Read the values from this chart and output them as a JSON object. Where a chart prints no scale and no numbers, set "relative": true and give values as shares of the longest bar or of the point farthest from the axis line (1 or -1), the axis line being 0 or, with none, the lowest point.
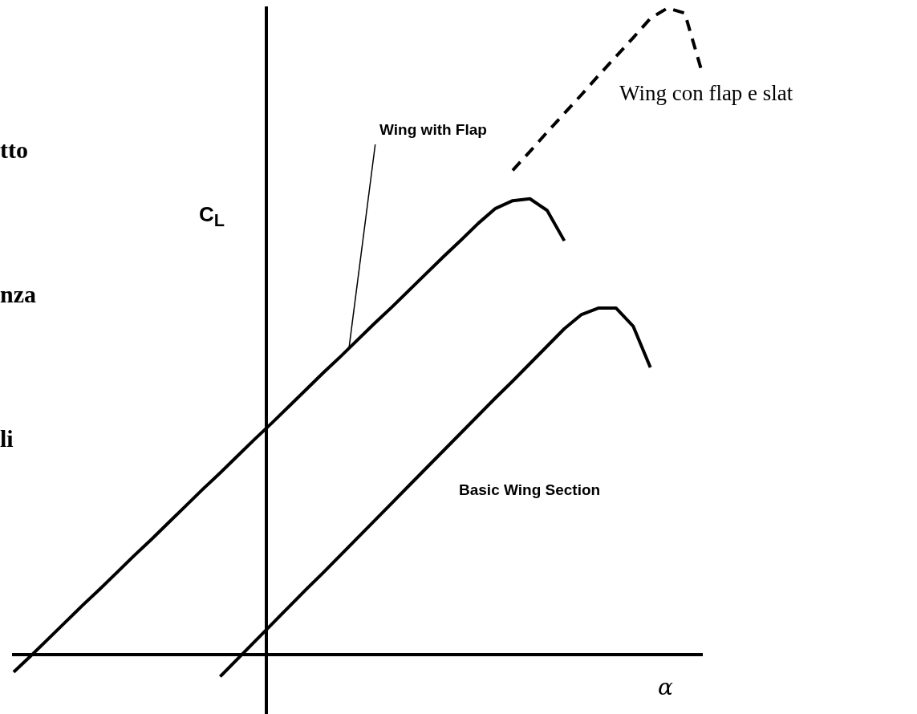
{
  "chart_data": {
    "type": "line",
    "relative": true,
    "xlabel": "α",
    "ylabel": "C$_{L}$",
    "annotations": [
      "tto",
      "nza",
      "li"
    ],
    "marker": "none",
    "legend": false,
    "categories": [
      null,
      null,
      null,
      null,
      null,
      null,
      null,
      null,
      null,
      null,
      null,
      null,
      null,
      null,
      null,
      null,
      null,
      null,
      null,
      null,
      null,
      null,
      null,
      null,
      null,
      null,
      null,
      null,
      null,
      null,
      null,
      null,
      null,
      null,
      null,
      null,
      null,
      null,
      null,
      null,
      null
    ],
    "series": [
      {
        "name": "Wing with Flap",
        "color": "#000000",
        "line_style": "solid",
        "values": [
          -0.027,
          -0.002,
          0.024,
          0.05,
          0.076,
          0.101,
          0.127,
          0.153,
          0.178,
          0.204,
          0.23,
          0.256,
          0.281,
          0.307,
          0.333,
          0.358,
          0.384,
          0.41,
          0.436,
          0.461,
          0.487,
          0.513,
          0.538,
          0.564,
          0.59,
          0.616,
          0.641,
          0.667,
          0.69,
          0.702,
          0.705,
          0.687,
          0.64,
          null,
          null,
          null,
          null,
          null,
          null,
          null,
          null
        ]
      },
      {
        "name": "Basic Wing Section",
        "color": "#000000",
        "line_style": "solid",
        "values": [
          null,
          null,
          null,
          null,
          null,
          null,
          null,
          null,
          null,
          null,
          null,
          null,
          -0.034,
          -0.007,
          0.02,
          0.047,
          0.074,
          0.101,
          0.127,
          0.154,
          0.181,
          0.208,
          0.235,
          0.262,
          0.289,
          0.316,
          0.343,
          0.37,
          0.397,
          0.423,
          0.45,
          0.477,
          0.504,
          0.526,
          0.536,
          0.536,
          0.508,
          0.444,
          null,
          null,
          null
        ]
      },
      {
        "name": "Wing con flap e slat",
        "color": "#000000",
        "line_style": "dashed",
        "values": [
          null,
          null,
          null,
          null,
          null,
          null,
          null,
          null,
          null,
          null,
          null,
          null,
          null,
          null,
          null,
          null,
          null,
          null,
          null,
          null,
          null,
          null,
          null,
          null,
          null,
          null,
          null,
          null,
          null,
          0.749,
          0.778,
          0.808,
          0.837,
          0.866,
          0.896,
          0.925,
          0.954,
          0.984,
          1.0,
          0.992,
          0.901
        ]
      }
    ]
  }
}
